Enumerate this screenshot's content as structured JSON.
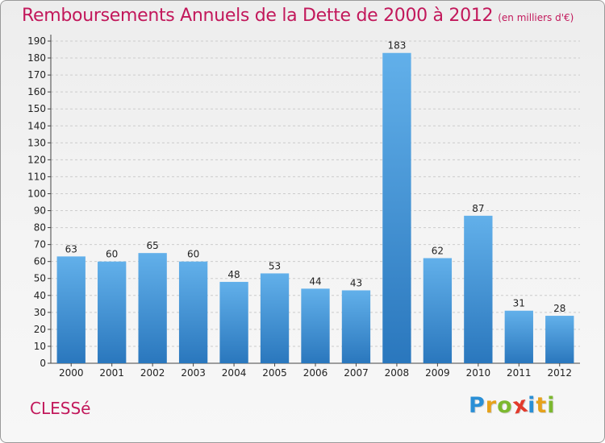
{
  "header": {
    "title": "Remboursements Annuels de la Dette de 2000 à 2012",
    "unit": "(en milliers d'€)"
  },
  "footer": {
    "commune": "CLESSé",
    "logo_letters": [
      {
        "ch": "P",
        "color": "#2a8fd6"
      },
      {
        "ch": "r",
        "color": "#e6a21b"
      },
      {
        "ch": "o",
        "color": "#7cb82f"
      },
      {
        "ch": "x",
        "color": "#e23a2c"
      },
      {
        "ch": "i",
        "color": "#2a8fd6"
      },
      {
        "ch": "t",
        "color": "#e6a21b"
      },
      {
        "ch": "i",
        "color": "#7cb82f"
      }
    ]
  },
  "colors": {
    "accent": "#c2185b",
    "bar_top": "#62b0ea",
    "bar_bottom": "#2a77bd",
    "grid": "#cccccc",
    "axis": "#444444"
  },
  "chart_data": {
    "type": "bar",
    "title": "Remboursements Annuels de la Dette de 2000 à 2012",
    "subtitle": "(en milliers d'€)",
    "categories": [
      "2000",
      "2001",
      "2002",
      "2003",
      "2004",
      "2005",
      "2006",
      "2007",
      "2008",
      "2009",
      "2010",
      "2011",
      "2012"
    ],
    "values": [
      63,
      60,
      65,
      60,
      48,
      53,
      44,
      43,
      183,
      62,
      87,
      31,
      28
    ],
    "ylim": [
      0,
      190
    ],
    "ytick_step": 10,
    "grid": true,
    "xlabel": "",
    "ylabel": ""
  }
}
